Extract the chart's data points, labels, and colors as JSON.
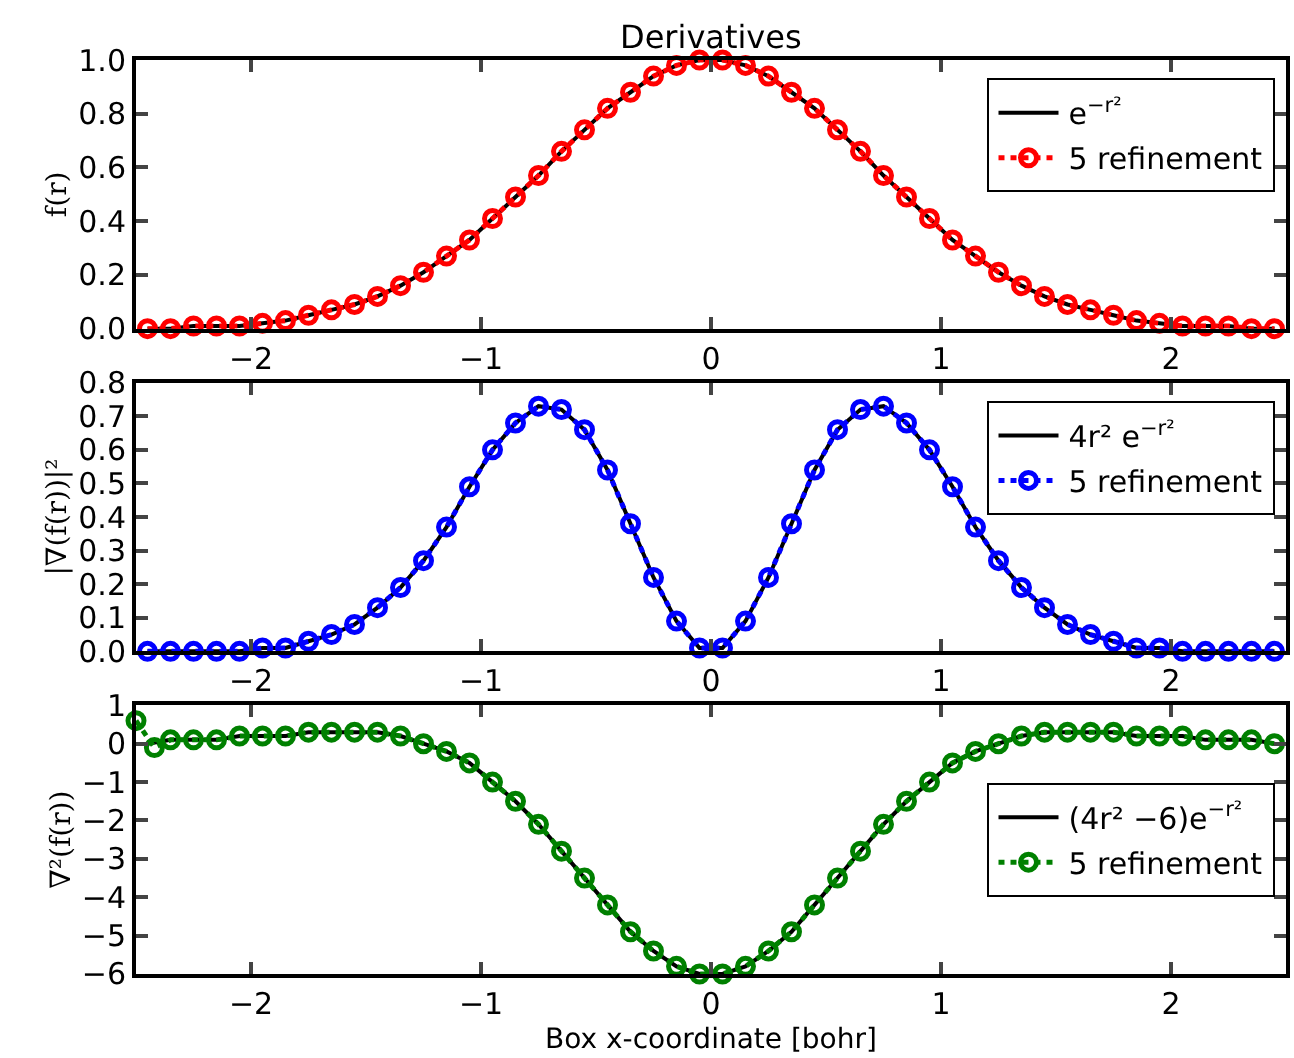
{
  "chart_data": [
    {
      "type": "line",
      "title": "Derivatives",
      "ylabel": "f(r)",
      "xlim": [
        -2.5,
        2.5
      ],
      "xticks": [
        -2,
        -1,
        0,
        1,
        2
      ],
      "ylim": [
        0,
        1
      ],
      "yticks": [
        {
          "value": 0,
          "label": "0.0"
        },
        0.2,
        0.4,
        0.6,
        0.8,
        {
          "value": 1,
          "label": "1.0"
        }
      ],
      "legend": "top right",
      "x": [
        -2.45,
        -2.35,
        -2.25,
        -2.15,
        -2.05,
        -1.95,
        -1.85,
        -1.75,
        -1.65,
        -1.55,
        -1.45,
        -1.35,
        -1.25,
        -1.15,
        -1.05,
        -0.95,
        -0.85,
        -0.75,
        -0.65,
        -0.55,
        -0.45,
        -0.35,
        -0.25,
        -0.15,
        -0.05,
        0.05,
        0.15,
        0.25,
        0.35,
        0.45,
        0.55,
        0.65,
        0.75,
        0.85,
        0.95,
        1.05,
        1.15,
        1.25,
        1.35,
        1.45,
        1.55,
        1.65,
        1.75,
        1.85,
        1.95,
        2.05,
        2.15,
        2.25,
        2.35,
        2.45
      ],
      "series": [
        {
          "name": "e$^{−r²}$",
          "color": "#000000",
          "marker": "none",
          "line_style": "solid",
          "values": [
            0,
            0,
            0.01,
            0.01,
            0.01,
            0.02,
            0.03,
            0.05,
            0.07,
            0.09,
            0.12,
            0.16,
            0.21,
            0.27,
            0.33,
            0.41,
            0.49,
            0.57,
            0.66,
            0.74,
            0.82,
            0.88,
            0.94,
            0.98,
            1.0,
            1.0,
            0.98,
            0.94,
            0.88,
            0.82,
            0.74,
            0.66,
            0.57,
            0.49,
            0.41,
            0.33,
            0.27,
            0.21,
            0.16,
            0.12,
            0.09,
            0.07,
            0.05,
            0.03,
            0.02,
            0.01,
            0.01,
            0.01,
            0,
            0
          ]
        },
        {
          "name": "5 refinement",
          "color": "#ff0000",
          "marker": "circle",
          "line_style": "dotted",
          "values": [
            0,
            0,
            0.01,
            0.01,
            0.01,
            0.02,
            0.03,
            0.05,
            0.07,
            0.09,
            0.12,
            0.16,
            0.21,
            0.27,
            0.33,
            0.41,
            0.49,
            0.57,
            0.66,
            0.74,
            0.82,
            0.88,
            0.94,
            0.98,
            1.0,
            1.0,
            0.98,
            0.94,
            0.88,
            0.82,
            0.74,
            0.66,
            0.57,
            0.49,
            0.41,
            0.33,
            0.27,
            0.21,
            0.16,
            0.12,
            0.09,
            0.07,
            0.05,
            0.03,
            0.02,
            0.01,
            0.01,
            0.01,
            0,
            0
          ]
        }
      ]
    },
    {
      "type": "line",
      "ylabel": "|∇(f(r))|²",
      "xlim": [
        -2.5,
        2.5
      ],
      "xticks": [
        -2,
        -1,
        0,
        1,
        2
      ],
      "ylim": [
        0,
        0.8
      ],
      "yticks": [
        {
          "value": 0,
          "label": "0.0"
        },
        0.1,
        0.2,
        0.3,
        0.4,
        0.5,
        0.6,
        0.7,
        0.8
      ],
      "legend": "top right",
      "x": [
        -2.45,
        -2.35,
        -2.25,
        -2.15,
        -2.05,
        -1.95,
        -1.85,
        -1.75,
        -1.65,
        -1.55,
        -1.45,
        -1.35,
        -1.25,
        -1.15,
        -1.05,
        -0.95,
        -0.85,
        -0.75,
        -0.65,
        -0.55,
        -0.45,
        -0.35,
        -0.25,
        -0.15,
        -0.05,
        0.05,
        0.15,
        0.25,
        0.35,
        0.45,
        0.55,
        0.65,
        0.75,
        0.85,
        0.95,
        1.05,
        1.15,
        1.25,
        1.35,
        1.45,
        1.55,
        1.65,
        1.75,
        1.85,
        1.95,
        2.05,
        2.15,
        2.25,
        2.35,
        2.45
      ],
      "series": [
        {
          "name": "4r² e$^{−r²}$",
          "color": "#000000",
          "marker": "none",
          "line_style": "solid",
          "values": [
            0,
            0,
            0,
            0,
            0,
            0.01,
            0.01,
            0.03,
            0.05,
            0.08,
            0.13,
            0.19,
            0.27,
            0.37,
            0.49,
            0.6,
            0.68,
            0.73,
            0.72,
            0.66,
            0.54,
            0.38,
            0.22,
            0.09,
            0.01,
            0.01,
            0.09,
            0.22,
            0.38,
            0.54,
            0.66,
            0.72,
            0.73,
            0.68,
            0.6,
            0.49,
            0.37,
            0.27,
            0.19,
            0.13,
            0.08,
            0.05,
            0.03,
            0.01,
            0.01,
            0,
            0,
            0,
            0,
            0
          ]
        },
        {
          "name": "5 refinement",
          "color": "#0000ff",
          "marker": "circle",
          "line_style": "dotted",
          "values": [
            0,
            0,
            0,
            0,
            0,
            0.01,
            0.01,
            0.03,
            0.05,
            0.08,
            0.13,
            0.19,
            0.27,
            0.37,
            0.49,
            0.6,
            0.68,
            0.73,
            0.72,
            0.66,
            0.54,
            0.38,
            0.22,
            0.09,
            0.01,
            0.01,
            0.09,
            0.22,
            0.38,
            0.54,
            0.66,
            0.72,
            0.73,
            0.68,
            0.6,
            0.49,
            0.37,
            0.27,
            0.19,
            0.13,
            0.08,
            0.05,
            0.03,
            0.01,
            0.01,
            0,
            0,
            0,
            0,
            0
          ]
        }
      ]
    },
    {
      "type": "line",
      "ylabel": "∇²(f(r))",
      "xlabel": "Box x-coordinate [bohr]",
      "xlim": [
        -2.5,
        2.5
      ],
      "xticks": [
        -2,
        -1,
        0,
        1,
        2
      ],
      "ylim": [
        -6,
        1
      ],
      "yticks": [
        {
          "value": -6,
          "label": "−6"
        },
        {
          "value": -5,
          "label": "−5"
        },
        {
          "value": -4,
          "label": "−4"
        },
        {
          "value": -3,
          "label": "−3"
        },
        {
          "value": -2,
          "label": "−2"
        },
        {
          "value": -1,
          "label": "−1"
        },
        0,
        1
      ],
      "legend": "right",
      "x": [
        -2.45,
        -2.35,
        -2.25,
        -2.15,
        -2.05,
        -1.95,
        -1.85,
        -1.75,
        -1.65,
        -1.55,
        -1.45,
        -1.35,
        -1.25,
        -1.15,
        -1.05,
        -0.95,
        -0.85,
        -0.75,
        -0.65,
        -0.55,
        -0.45,
        -0.35,
        -0.25,
        -0.15,
        -0.05,
        0.05,
        0.15,
        0.25,
        0.35,
        0.45,
        0.55,
        0.65,
        0.75,
        0.85,
        0.95,
        1.05,
        1.15,
        1.25,
        1.35,
        1.45,
        1.55,
        1.65,
        1.75,
        1.85,
        1.95,
        2.05,
        2.15,
        2.25,
        2.35,
        2.45
      ],
      "series": [
        {
          "name": "(4r² −6)e$^{−r²}$",
          "color": "#000000",
          "marker": "none",
          "line_style": "solid",
          "values": [
            0.0,
            0.1,
            0.1,
            0.1,
            0.2,
            0.2,
            0.2,
            0.3,
            0.3,
            0.3,
            0.3,
            0.2,
            0.0,
            -0.2,
            -0.5,
            -1.0,
            -1.5,
            -2.1,
            -2.8,
            -3.5,
            -4.2,
            -4.9,
            -5.4,
            -5.8,
            -6.0,
            -6.0,
            -5.8,
            -5.4,
            -4.9,
            -4.2,
            -3.5,
            -2.8,
            -2.1,
            -1.5,
            -1.0,
            -0.5,
            -0.2,
            0.0,
            0.2,
            0.3,
            0.3,
            0.3,
            0.3,
            0.2,
            0.2,
            0.2,
            0.1,
            0.1,
            0.1,
            0.0
          ]
        },
        {
          "name": "5 refinement",
          "color": "#008000",
          "marker": "circle",
          "line_style": "dotted",
          "x": [
            -2.5,
            -2.42,
            -2.35,
            -2.25,
            -2.15,
            -2.05,
            -1.95,
            -1.85,
            -1.75,
            -1.65,
            -1.55,
            -1.45,
            -1.35,
            -1.25,
            -1.15,
            -1.05,
            -0.95,
            -0.85,
            -0.75,
            -0.65,
            -0.55,
            -0.45,
            -0.35,
            -0.25,
            -0.15,
            -0.05,
            0.05,
            0.15,
            0.25,
            0.35,
            0.45,
            0.55,
            0.65,
            0.75,
            0.85,
            0.95,
            1.05,
            1.15,
            1.25,
            1.35,
            1.45,
            1.55,
            1.65,
            1.75,
            1.85,
            1.95,
            2.05,
            2.15,
            2.25,
            2.35,
            2.45
          ],
          "values": [
            0.6,
            -0.1,
            0.1,
            0.1,
            0.1,
            0.2,
            0.2,
            0.2,
            0.3,
            0.3,
            0.3,
            0.3,
            0.2,
            0.0,
            -0.2,
            -0.5,
            -1.0,
            -1.5,
            -2.1,
            -2.8,
            -3.5,
            -4.2,
            -4.9,
            -5.4,
            -5.8,
            -6.0,
            -6.0,
            -5.8,
            -5.4,
            -4.9,
            -4.2,
            -3.5,
            -2.8,
            -2.1,
            -1.5,
            -1.0,
            -0.5,
            -0.2,
            0.0,
            0.2,
            0.3,
            0.3,
            0.3,
            0.3,
            0.2,
            0.2,
            0.2,
            0.1,
            0.1,
            0.1,
            0.0
          ]
        }
      ]
    }
  ]
}
